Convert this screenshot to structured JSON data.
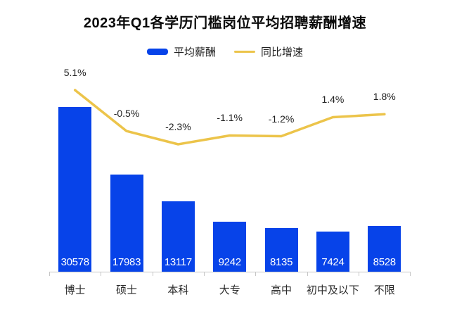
{
  "title": "2023年Q1各学历门槛岗位平均招聘薪酬增速",
  "legend": {
    "bar_label": "平均薪酬",
    "line_label": "同比增速"
  },
  "colors": {
    "bar": "#0743e9",
    "line": "#ecc44a",
    "axis": "#c6c6c6",
    "value_text": "#ffffff"
  },
  "chart_data": {
    "type": "bar",
    "subtype": "bar-line-combo",
    "title": "2023年Q1各学历门槛岗位平均招聘薪酬增速",
    "categories": [
      "博士",
      "硕士",
      "本科",
      "大专",
      "高中",
      "初中及以下",
      "不限"
    ],
    "series": [
      {
        "name": "平均薪酬",
        "type": "bar",
        "values": [
          30578,
          17983,
          13117,
          9242,
          8135,
          7424,
          8528
        ],
        "value_labels": [
          "30578",
          "17983",
          "13117",
          "9242",
          "8135",
          "7424",
          "8528"
        ]
      },
      {
        "name": "同比增速",
        "type": "line",
        "values": [
          5.1,
          -0.5,
          -2.3,
          -1.1,
          -1.2,
          1.4,
          1.8
        ],
        "value_labels": [
          "5.1%",
          "-0.5%",
          "-2.3%",
          "-1.1%",
          "-1.2%",
          "1.4%",
          "1.8%"
        ]
      }
    ],
    "legend_position": "top",
    "grid": false,
    "y_axis_visible": false,
    "x_axis_visible": true
  }
}
